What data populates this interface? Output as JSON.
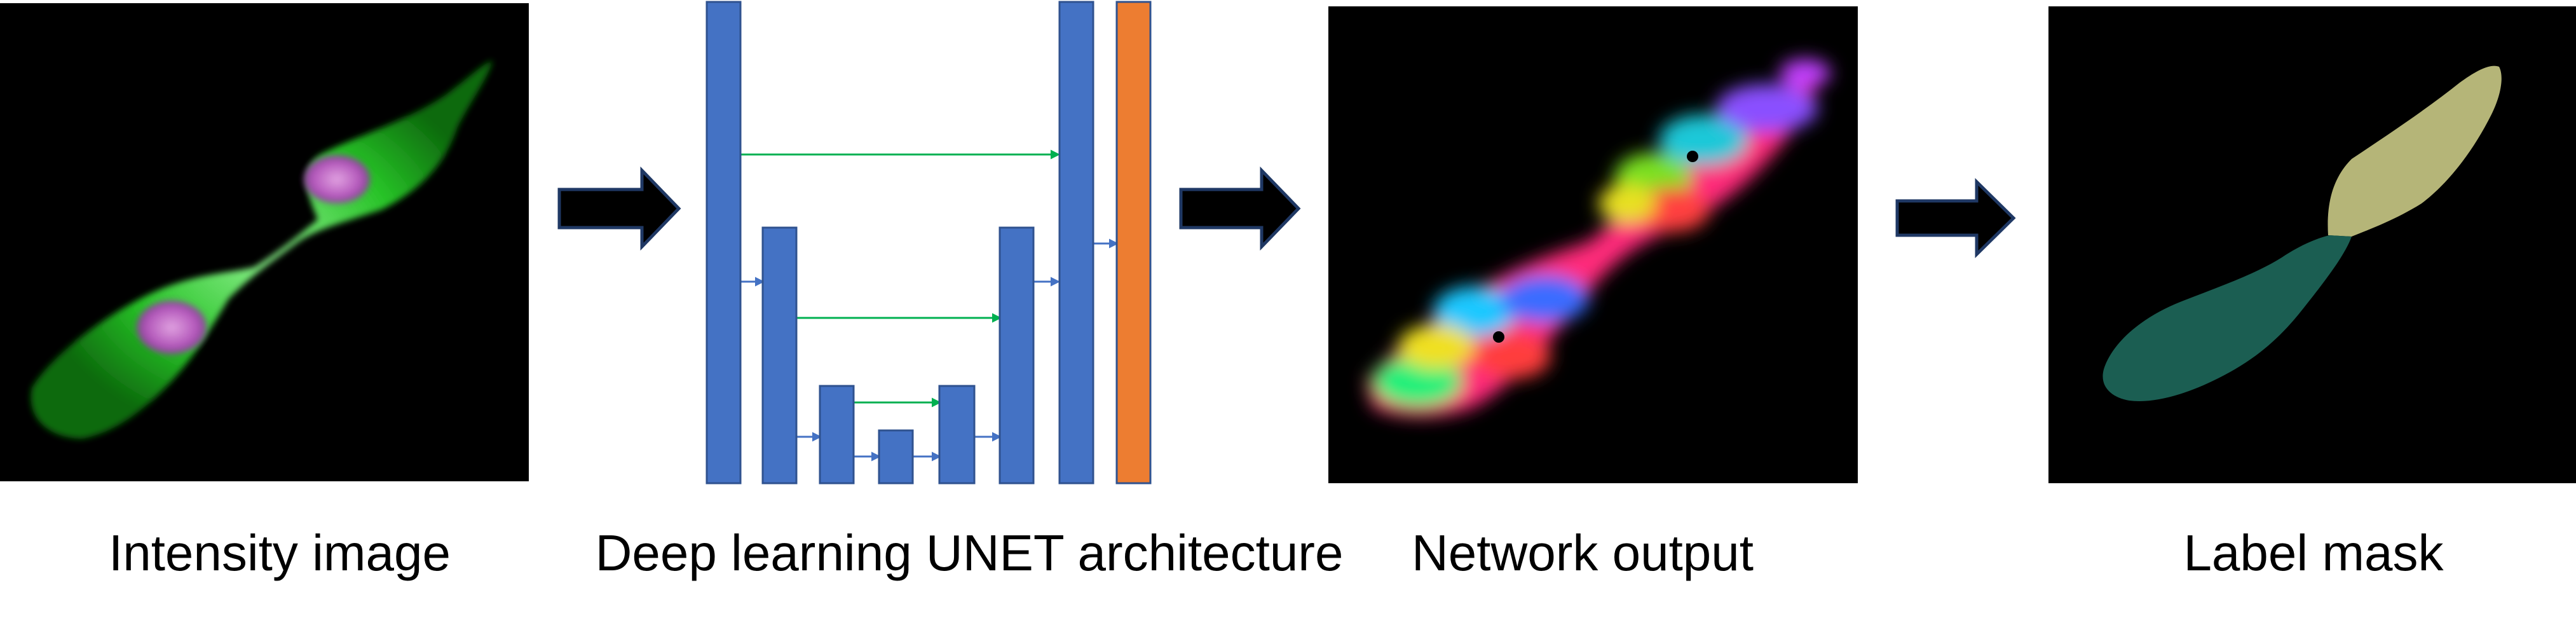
{
  "captions": {
    "intensity_image": "Intensity image",
    "unet": "Deep learning UNET architecture",
    "network_output": "Network output",
    "label_mask": "Label mask"
  },
  "colors": {
    "background": "#ffffff",
    "panel_background": "#000000",
    "unet_block": "#4472c4",
    "unet_block_border": "#2f528f",
    "unet_output_block": "#ed7d31",
    "skip_connection": "#00b050",
    "flow_arrow_fill": "#000000",
    "flow_arrow_stroke": "#1f3864",
    "cytoplasm": "#2ecc2e",
    "nucleus": "#d060d0",
    "mask_cell_1": "#b5b578",
    "mask_cell_2": "#1b5e52"
  },
  "unet": {
    "encoder_levels": 4,
    "decoder_levels": 4,
    "skip_connections": 3
  }
}
